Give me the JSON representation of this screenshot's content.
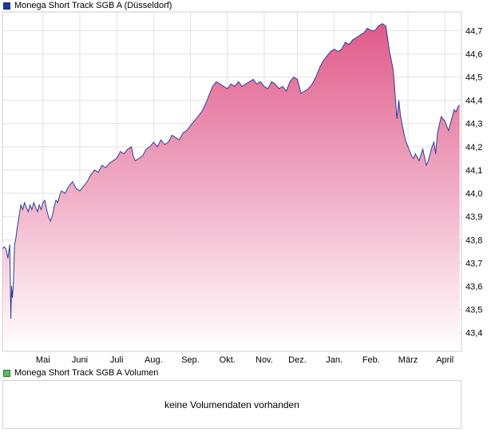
{
  "legend": {
    "price_label": "Monega Short Track SGB A (Düsseldorf)",
    "price_color": "#1f3a93",
    "volume_label": "Monega Short Track SGB A Volumen",
    "volume_color": "#5cb85c"
  },
  "volume_panel": {
    "message": "keine Volumendaten vorhanden"
  },
  "chart_data": {
    "type": "area",
    "y_ticks": [
      "43,4",
      "43,5",
      "43,6",
      "43,7",
      "43,8",
      "43,9",
      "44,0",
      "44,1",
      "44,2",
      "44,3",
      "44,4",
      "44,5",
      "44,6",
      "44,7"
    ],
    "y_tick_values": [
      43.4,
      43.5,
      43.6,
      43.7,
      43.8,
      43.9,
      44.0,
      44.1,
      44.2,
      44.3,
      44.4,
      44.5,
      44.6,
      44.7
    ],
    "ylim": [
      43.32,
      44.78
    ],
    "x_ticks": [
      "Mai",
      "Juni",
      "Juli",
      "Aug.",
      "Sep.",
      "Okt.",
      "Nov.",
      "Dez.",
      "Jan.",
      "Feb.",
      "März",
      "April"
    ],
    "x_tick_positions": [
      1.1,
      2.1,
      3.1,
      4.1,
      5.1,
      6.1,
      7.1,
      8.0,
      9.0,
      10.0,
      11.0,
      12.0
    ],
    "xlim": [
      0.0,
      12.45
    ],
    "grid": true,
    "line_color": "#2b3f9c",
    "fill_top_color": "#e05a8a",
    "fill_bottom_color": "#ffffff",
    "series": [
      {
        "x": [
          0.0,
          0.05,
          0.1,
          0.15,
          0.2,
          0.23,
          0.25,
          0.27,
          0.3,
          0.33,
          0.36,
          0.4,
          0.45,
          0.5,
          0.55,
          0.6,
          0.65,
          0.7,
          0.75,
          0.8,
          0.85,
          0.9,
          0.95,
          1.0,
          1.05,
          1.1,
          1.15,
          1.2,
          1.25,
          1.3,
          1.35,
          1.4,
          1.45,
          1.5,
          1.55,
          1.6,
          1.7,
          1.8,
          1.9,
          2.0,
          2.1,
          2.2,
          2.3,
          2.4,
          2.5,
          2.6,
          2.7,
          2.8,
          2.9,
          3.0,
          3.1,
          3.2,
          3.3,
          3.4,
          3.5,
          3.55,
          3.6,
          3.7,
          3.8,
          3.9,
          4.0,
          4.1,
          4.2,
          4.3,
          4.4,
          4.5,
          4.6,
          4.7,
          4.8,
          4.9,
          5.0,
          5.1,
          5.2,
          5.3,
          5.4,
          5.5,
          5.6,
          5.7,
          5.8,
          5.9,
          6.0,
          6.1,
          6.2,
          6.3,
          6.4,
          6.5,
          6.6,
          6.7,
          6.8,
          6.9,
          7.0,
          7.1,
          7.2,
          7.3,
          7.4,
          7.5,
          7.6,
          7.7,
          7.8,
          7.9,
          8.0,
          8.1,
          8.2,
          8.3,
          8.4,
          8.5,
          8.6,
          8.7,
          8.8,
          8.9,
          9.0,
          9.1,
          9.2,
          9.3,
          9.4,
          9.5,
          9.6,
          9.7,
          9.8,
          9.9,
          10.0,
          10.1,
          10.2,
          10.3,
          10.4,
          10.5,
          10.6,
          10.7,
          10.75,
          10.8,
          10.85,
          10.9,
          10.95,
          11.0,
          11.05,
          11.1,
          11.15,
          11.2,
          11.3,
          11.4,
          11.5,
          11.55,
          11.6,
          11.65,
          11.7,
          11.75,
          11.8,
          11.9,
          12.0,
          12.1,
          12.15,
          12.2,
          12.25,
          12.3,
          12.35,
          12.4
        ],
        "values": [
          43.76,
          43.77,
          43.76,
          43.72,
          43.78,
          43.46,
          43.6,
          43.55,
          43.62,
          43.78,
          43.8,
          43.85,
          43.9,
          43.95,
          43.93,
          43.96,
          43.94,
          43.92,
          43.95,
          43.93,
          43.96,
          43.94,
          43.92,
          43.95,
          43.93,
          43.96,
          43.97,
          43.93,
          43.9,
          43.88,
          43.9,
          43.94,
          43.97,
          43.96,
          43.99,
          44.01,
          44.0,
          44.03,
          44.05,
          44.02,
          44.01,
          44.03,
          44.05,
          44.08,
          44.1,
          44.09,
          44.12,
          44.11,
          44.13,
          44.14,
          44.15,
          44.18,
          44.17,
          44.19,
          44.2,
          44.16,
          44.14,
          44.15,
          44.16,
          44.19,
          44.2,
          44.22,
          44.2,
          44.23,
          44.21,
          44.22,
          44.25,
          44.24,
          44.23,
          44.26,
          44.27,
          44.29,
          44.31,
          44.33,
          44.35,
          44.38,
          44.42,
          44.46,
          44.48,
          44.47,
          44.46,
          44.45,
          44.47,
          44.46,
          44.48,
          44.46,
          44.47,
          44.48,
          44.49,
          44.47,
          44.48,
          44.46,
          44.45,
          44.48,
          44.47,
          44.45,
          44.46,
          44.44,
          44.48,
          44.5,
          44.49,
          44.43,
          44.44,
          44.45,
          44.47,
          44.5,
          44.54,
          44.57,
          44.59,
          44.61,
          44.62,
          44.61,
          44.62,
          44.65,
          44.64,
          44.66,
          44.67,
          44.68,
          44.69,
          44.71,
          44.7,
          44.7,
          44.72,
          44.73,
          44.72,
          44.61,
          44.53,
          44.32,
          44.4,
          44.33,
          44.29,
          44.25,
          44.22,
          44.2,
          44.18,
          44.16,
          44.15,
          44.17,
          44.14,
          44.19,
          44.12,
          44.14,
          44.17,
          44.2,
          44.22,
          44.17,
          44.26,
          44.33,
          44.31,
          44.27,
          44.3,
          44.33,
          44.36,
          44.35,
          44.37,
          44.38
        ]
      }
    ]
  }
}
